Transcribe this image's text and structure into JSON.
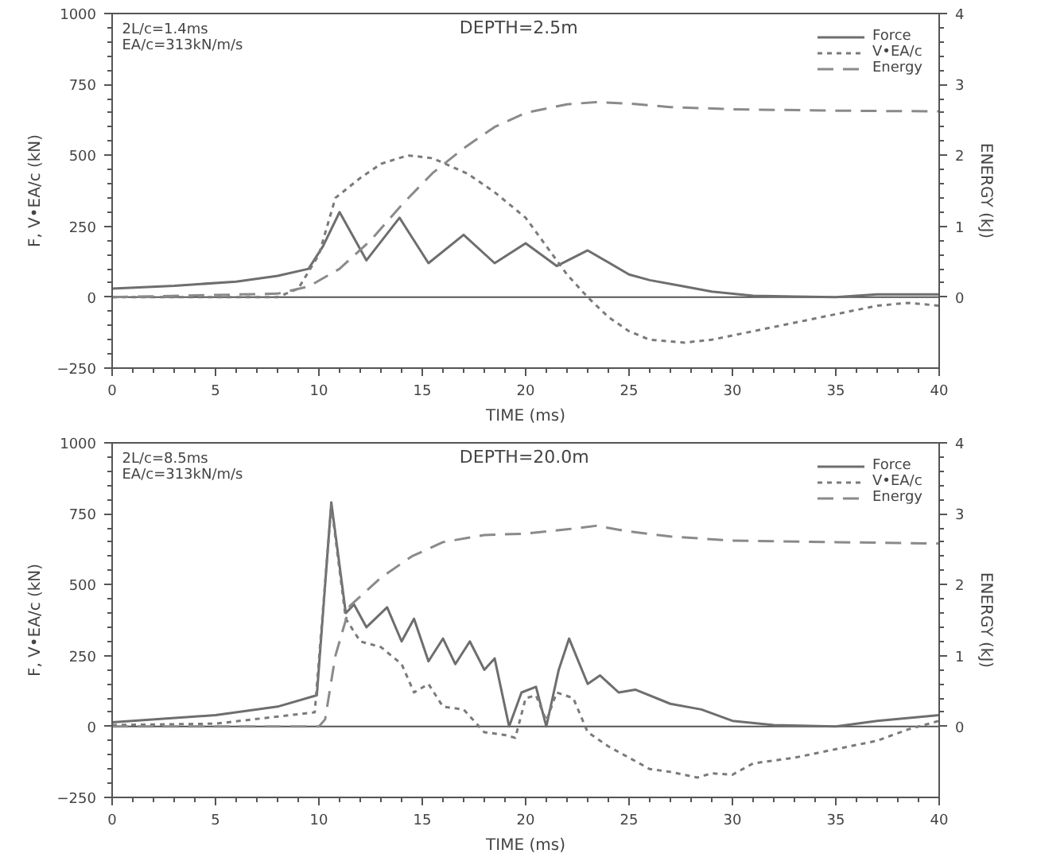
{
  "chart_data": [
    {
      "type": "line",
      "title": "DEPTH=2.5m",
      "annotations": [
        "2L/c=1.4ms",
        "EA/c=313kN/m/s"
      ],
      "xlabel": "TIME (ms)",
      "ylabel": "F, V•EA/c (kN)",
      "y2label": "ENERGY (kJ)",
      "xlim": [
        0,
        40
      ],
      "xticks": [
        0,
        5,
        10,
        15,
        20,
        25,
        30,
        35,
        40
      ],
      "ylim": [
        -250,
        1000
      ],
      "yticks": [
        -250,
        0,
        250,
        500,
        750,
        1000
      ],
      "y2lim": [
        -1,
        4
      ],
      "y2ticks": [
        0,
        1,
        2,
        3,
        4
      ],
      "legend": "top right",
      "grid": false,
      "marker": "none",
      "ref_lines": [
        {
          "axis": "y",
          "value": 0,
          "label": null
        }
      ],
      "series": [
        {
          "name": "Force",
          "color": "#6e6e6e",
          "line_style": "solid",
          "x": [
            0,
            3,
            6,
            8,
            9.5,
            10.2,
            11,
            12.3,
            13.9,
            15.3,
            17,
            18.5,
            20,
            21.5,
            23,
            25,
            26,
            27.5,
            29,
            31,
            33,
            35,
            37,
            40
          ],
          "values": [
            30,
            40,
            55,
            75,
            100,
            180,
            300,
            130,
            280,
            120,
            220,
            120,
            190,
            110,
            165,
            80,
            60,
            40,
            20,
            5,
            2,
            0,
            10,
            10
          ]
        },
        {
          "name": "V•EA/c",
          "color": "#7a7a7a",
          "line_style": "dotted",
          "x": [
            0,
            8,
            9,
            10,
            10.8,
            12,
            13,
            14.3,
            15.5,
            17.2,
            18.5,
            20,
            21,
            22,
            23,
            24,
            25,
            26,
            27.7,
            29,
            31,
            33,
            35,
            37,
            38.5,
            40
          ],
          "values": [
            0,
            0,
            30,
            150,
            350,
            420,
            470,
            500,
            490,
            435,
            370,
            280,
            180,
            80,
            0,
            -70,
            -120,
            -150,
            -160,
            -150,
            -120,
            -90,
            -60,
            -30,
            -20,
            -30
          ]
        },
        {
          "name": "Energy",
          "color": "#8a8a8a",
          "line_style": "dashed",
          "axis": "y2",
          "x": [
            0,
            8,
            9.5,
            11,
            12.5,
            14,
            15.5,
            17,
            18.5,
            20,
            22,
            23.4,
            25,
            27,
            30,
            35,
            40
          ],
          "values": [
            0,
            0.05,
            0.15,
            0.4,
            0.8,
            1.3,
            1.75,
            2.1,
            2.4,
            2.6,
            2.72,
            2.75,
            2.73,
            2.68,
            2.65,
            2.63,
            2.62
          ]
        }
      ]
    },
    {
      "type": "line",
      "title": "DEPTH=20.0m",
      "annotations": [
        "2L/c=8.5ms",
        "EA/c=313kN/m/s"
      ],
      "xlabel": "TIME (ms)",
      "ylabel": "F, V•EA/c (kN)",
      "y2label": "ENERGY (kJ)",
      "xlim": [
        0,
        40
      ],
      "xticks": [
        0,
        5,
        10,
        15,
        20,
        25,
        30,
        35,
        40
      ],
      "ylim": [
        -250,
        1000
      ],
      "yticks": [
        -250,
        0,
        250,
        500,
        750,
        1000
      ],
      "y2lim": [
        -1,
        4
      ],
      "y2ticks": [
        0,
        1,
        2,
        3,
        4
      ],
      "legend": "top right",
      "grid": false,
      "marker": "none",
      "ref_lines": [
        {
          "axis": "y",
          "value": 0,
          "label": null
        }
      ],
      "series": [
        {
          "name": "Force",
          "color": "#6e6e6e",
          "line_style": "solid",
          "x": [
            0,
            5,
            8,
            9.9,
            10.6,
            11.3,
            11.7,
            12.3,
            13.3,
            14,
            14.6,
            15.3,
            16,
            16.6,
            17.3,
            18,
            18.5,
            19.2,
            19.8,
            20.5,
            21,
            21.6,
            22.1,
            23,
            23.6,
            24.5,
            25.3,
            27,
            28.5,
            30,
            32,
            35,
            37,
            40
          ],
          "values": [
            15,
            40,
            70,
            110,
            790,
            400,
            430,
            350,
            420,
            300,
            380,
            230,
            310,
            220,
            300,
            200,
            240,
            0,
            120,
            140,
            0,
            200,
            310,
            150,
            180,
            120,
            130,
            80,
            60,
            20,
            5,
            0,
            20,
            40
          ]
        },
        {
          "name": "V•EA/c",
          "color": "#7a7a7a",
          "line_style": "dotted",
          "x": [
            0,
            5,
            9.8,
            10.6,
            11.3,
            12,
            13,
            14,
            14.6,
            15.3,
            16,
            17,
            18,
            19,
            19.5,
            20,
            20.5,
            21,
            21.5,
            22.3,
            23,
            24,
            25,
            26,
            27,
            28.3,
            29,
            30,
            31,
            33,
            35,
            37,
            38.5,
            40
          ],
          "values": [
            5,
            10,
            50,
            780,
            380,
            300,
            280,
            220,
            120,
            150,
            70,
            60,
            -20,
            -30,
            -40,
            100,
            110,
            20,
            120,
            100,
            -20,
            -70,
            -110,
            -150,
            -160,
            -180,
            -165,
            -170,
            -130,
            -110,
            -80,
            -50,
            -10,
            20
          ]
        },
        {
          "name": "Energy",
          "color": "#8a8a8a",
          "line_style": "dashed",
          "axis": "y2",
          "x": [
            0,
            10,
            10.3,
            10.8,
            11.5,
            13,
            14.5,
            16,
            18,
            20,
            22,
            23.4,
            25,
            27,
            30,
            35,
            40
          ],
          "values": [
            0,
            0,
            0.1,
            1.0,
            1.7,
            2.1,
            2.4,
            2.6,
            2.7,
            2.72,
            2.78,
            2.83,
            2.75,
            2.68,
            2.62,
            2.6,
            2.58
          ]
        }
      ]
    }
  ]
}
